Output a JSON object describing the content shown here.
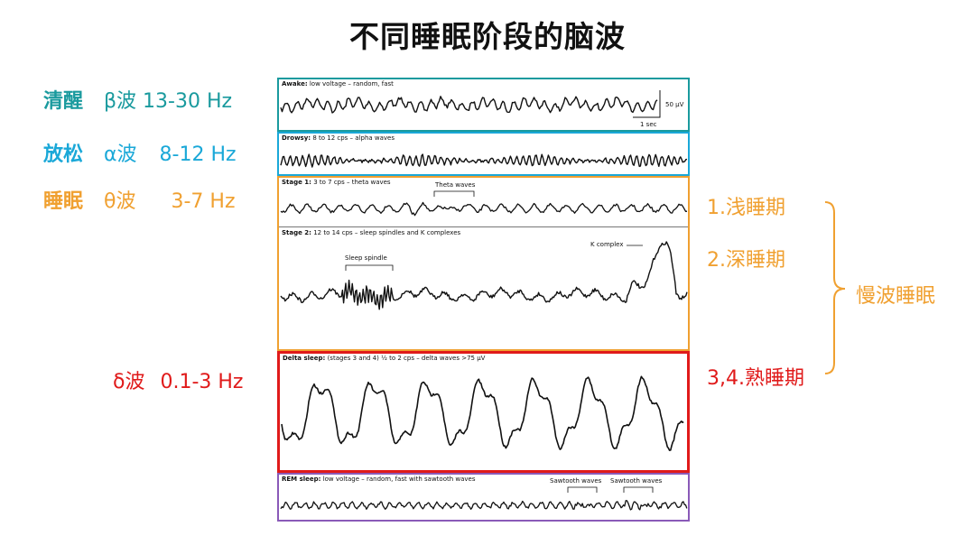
{
  "title": "不同睡眠阶段的脑波",
  "colors": {
    "teal": "#1a9a9e",
    "cyan": "#1aa8d8",
    "orange": "#f0a030",
    "red": "#e01a1a",
    "purple": "#8a5ab8"
  },
  "left_labels": {
    "awake": {
      "state": "清醒",
      "wave": "β波 13-30 Hz"
    },
    "relax": {
      "state": "放松",
      "wave": "α波",
      "freq": "8-12 Hz"
    },
    "sleep": {
      "state": "睡眠",
      "wave": "θ波",
      "freq": "3-7 Hz"
    },
    "delta": {
      "wave": "δ波",
      "freq": "0.1-3 Hz"
    }
  },
  "right_labels": {
    "stage1": "1.浅睡期",
    "stage2": "2.深睡期",
    "stage34": "3,4.熟睡期",
    "slow_wave": "慢波睡眠"
  },
  "panels": {
    "awake": {
      "name": "Awake:",
      "desc": "low voltage – random, fast"
    },
    "drowsy": {
      "name": "Drowsy:",
      "desc": "8 to 12 cps – alpha waves"
    },
    "stage1": {
      "name": "Stage 1:",
      "desc": "3 to 7 cps – theta waves"
    },
    "stage2": {
      "name": "Stage 2:",
      "desc": "12 to 14 cps – sleep spindles and K complexes"
    },
    "delta": {
      "name": "Delta sleep:",
      "desc": "(stages 3 and 4) ½ to 2 cps – delta waves >75 μV"
    },
    "rem": {
      "name": "REM sleep:",
      "desc": "low voltage – random, fast with sawtooth waves"
    }
  },
  "annotations": {
    "scale_uv": "50 μV",
    "scale_sec": "1 sec",
    "theta_waves": "Theta waves",
    "sleep_spindle": "Sleep spindle",
    "k_complex": "K complex",
    "sawtooth1": "Sawtooth waves",
    "sawtooth2": "Sawtooth waves"
  }
}
